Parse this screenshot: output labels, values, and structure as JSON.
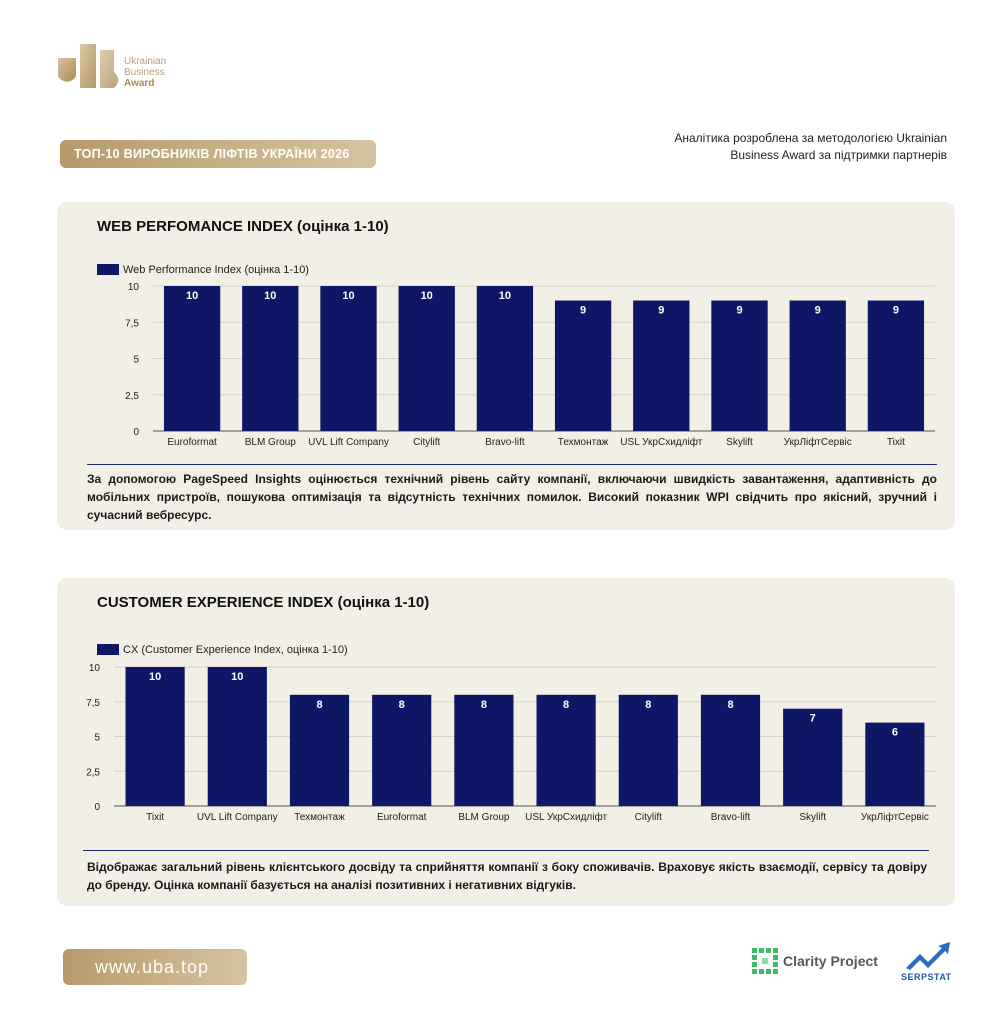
{
  "logo": {
    "line1": "Ukrainian",
    "line2": "Business",
    "line3": "Award"
  },
  "header": {
    "title": "ТОП-10 ВИРОБНИКІВ ЛІФТІВ УКРАЇНИ 2026",
    "note_line1": "Аналітика розроблена за методологією Ukrainian",
    "note_line2": "Business Award за підтримки партнерів"
  },
  "colors": {
    "bar": "#0e1766",
    "gold": "#b59a6c",
    "card": "#f1efe6"
  },
  "chart_data": [
    {
      "type": "bar",
      "title": "WEB PERFOMANCE INDEX (оцінка 1-10)",
      "legend": "Web Performance Index (оцінка 1-10)",
      "categories": [
        "Euroformat",
        "BLM Group",
        "UVL Lift Company",
        "Citylift",
        "Bravo-lift",
        "Техмонтаж",
        "USL УкрСхидліфт",
        "Skylift",
        "УкрЛіфтСервіс",
        "Tixit"
      ],
      "values": [
        10,
        10,
        10,
        10,
        10,
        9,
        9,
        9,
        9,
        9
      ],
      "yticks": [
        "0",
        "2,5",
        "5",
        "7,5",
        "10"
      ],
      "ylim": [
        0,
        10
      ],
      "grid": true,
      "legend_position": "top-left"
    },
    {
      "type": "bar",
      "title": "CUSTOMER EXPERIENCE INDEX (оцінка 1-10)",
      "legend": "CX (Customer Experience Index, оцінка 1-10)",
      "categories": [
        "Tixit",
        "UVL Lift Company",
        "Техмонтаж",
        "Euroformat",
        "BLM Group",
        "USL УкрСхидліфт",
        "Citylift",
        "Bravo-lift",
        "Skylift",
        "УкрЛіфтСервіс"
      ],
      "values": [
        10,
        10,
        8,
        8,
        8,
        8,
        8,
        8,
        7,
        6
      ],
      "yticks": [
        "0",
        "2,5",
        "5",
        "7,5",
        "10"
      ],
      "ylim": [
        0,
        10
      ],
      "grid": true,
      "legend_position": "top-left"
    }
  ],
  "descriptions": {
    "wpi": "За допомогою PageSpeed Insights оцінюється технічний рівень сайту компанії, включаючи швидкість завантаження, адаптивність до мобільних пристроїв, пошукова оптимізація та відсутність технічних помилок. Високий показник WPI свідчить про якісний, зручний і сучасний вебресурс.",
    "cx": "Відображає загальний рівень клієнтського досвіду та сприйняття компанії з боку споживачів. Враховує якість взаємодії, сервісу та довіру до бренду. Оцінка компанії базується на аналізі позитивних і негативних відгуків."
  },
  "footer": {
    "url": "www.uba.top",
    "partner1": "Clarity Project",
    "partner2": "SERPSTAT"
  }
}
